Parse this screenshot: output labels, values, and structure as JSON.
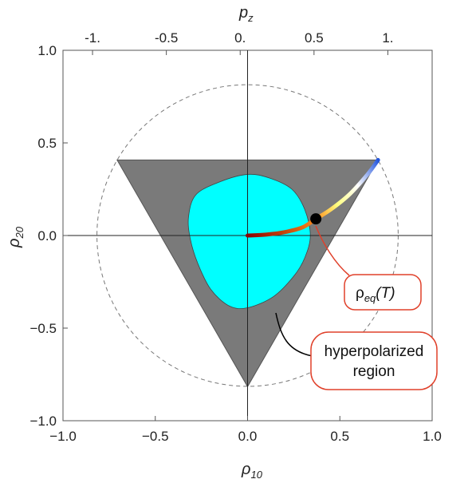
{
  "chart_data": {
    "type": "scatter",
    "xlabel_main": "ρ",
    "xlabel_sub": "10",
    "ylabel_main": "ρ",
    "ylabel_sub": "20",
    "top_label_main": "p",
    "top_label_sub": "z",
    "xlim": [
      -1.0,
      1.0
    ],
    "ylim": [
      -1.0,
      1.0
    ],
    "x_ticks": [
      -1.0,
      -0.5,
      0.0,
      0.5,
      1.0
    ],
    "x_tick_labels": [
      "−1.0",
      "−0.5",
      "0.0",
      "0.5",
      "1.0"
    ],
    "y_ticks": [
      -1.0,
      -0.5,
      0.0,
      0.5,
      1.0
    ],
    "y_tick_labels": [
      "−1.0",
      "−0.5",
      "0.0",
      "0.5",
      "1.0"
    ],
    "top_ticks": [
      -1,
      -0.5,
      0,
      0.5,
      1
    ],
    "top_tick_labels": [
      "-1.",
      "-0.5",
      "0.",
      "0.5",
      "1."
    ],
    "triangle": [
      [
        -0.707,
        0.408
      ],
      [
        0.707,
        0.408
      ],
      [
        0.0,
        -0.816
      ]
    ],
    "dashed_circle_radius": 0.816,
    "cyan_region": [
      [
        -0.28,
        0.22
      ],
      [
        -0.15,
        0.29
      ],
      [
        0.0,
        0.33
      ],
      [
        0.12,
        0.31
      ],
      [
        0.24,
        0.25
      ],
      [
        0.31,
        0.14
      ],
      [
        0.34,
        0.0
      ],
      [
        0.31,
        -0.12
      ],
      [
        0.25,
        -0.22
      ],
      [
        0.14,
        -0.33
      ],
      [
        0.0,
        -0.39
      ],
      [
        -0.1,
        -0.38
      ],
      [
        -0.2,
        -0.29
      ],
      [
        -0.27,
        -0.15
      ],
      [
        -0.31,
        -0.02
      ],
      [
        -0.32,
        0.1
      ]
    ],
    "eq_curve": [
      [
        0.0,
        0.0
      ],
      [
        0.1,
        0.005
      ],
      [
        0.2,
        0.018
      ],
      [
        0.3,
        0.045
      ],
      [
        0.37,
        0.09
      ],
      [
        0.45,
        0.14
      ],
      [
        0.55,
        0.22
      ],
      [
        0.65,
        0.33
      ],
      [
        0.707,
        0.408
      ]
    ],
    "marker_point": [
      0.37,
      0.09
    ],
    "colors": {
      "triangle": "#7a7a7a",
      "cyan": "#00ffff",
      "curve_start": "#8b0000",
      "curve_mid": "#ff8c1a",
      "curve_yellow": "#ffff80",
      "curve_white": "#ffffff",
      "curve_end": "#2255dd",
      "callout_border": "#e0402a"
    }
  },
  "annotations": {
    "eq_label_main": "ρ",
    "eq_label_sub": "eq",
    "eq_label_tail": "(T)",
    "hyper_line1": "hyperpolarized",
    "hyper_line2": "region"
  }
}
